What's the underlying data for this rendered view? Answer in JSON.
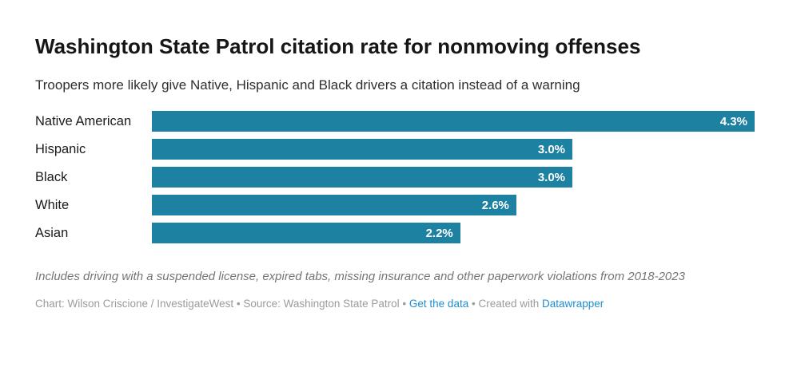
{
  "header": {
    "title": "Washington State Patrol citation rate for nonmoving offenses",
    "subtitle": "Troopers more likely give Native, Hispanic and Black drivers a citation instead of a warning"
  },
  "chart_data": {
    "type": "bar",
    "orientation": "horizontal",
    "categories": [
      "Native American",
      "Hispanic",
      "Black",
      "White",
      "Asian"
    ],
    "values": [
      4.3,
      3.0,
      3.0,
      2.6,
      2.2
    ],
    "value_labels": [
      "4.3%",
      "3.0%",
      "3.0%",
      "2.6%",
      "2.2%"
    ],
    "title": "Washington State Patrol citation rate for nonmoving offenses",
    "xlabel": "",
    "ylabel": "",
    "xlim": [
      0,
      4.3
    ],
    "grid": false,
    "legend": false,
    "value_label_position": "inside-end"
  },
  "footer": {
    "note": "Includes driving with a suspended license, expired tabs, missing insurance and other paperwork violations from 2018-2023",
    "credits_segments": [
      {
        "text": "Chart: Wilson Criscione / InvestigateWest • Source: Washington State Patrol • ",
        "type": "text",
        "name": "credits-byline-source"
      },
      {
        "text": "Get the data",
        "type": "link",
        "name": "get-the-data-link"
      },
      {
        "text": " • Created with ",
        "type": "text",
        "name": "credits-created-with"
      },
      {
        "text": "Datawrapper",
        "type": "link",
        "name": "datawrapper-link"
      }
    ]
  },
  "colors": {
    "bar": "#1d81a2",
    "link": "#1e8ece",
    "title_text": "#161616",
    "note_text": "#757575",
    "credits_text": "#9b9b9b",
    "value_label_text": "#ffffff"
  }
}
